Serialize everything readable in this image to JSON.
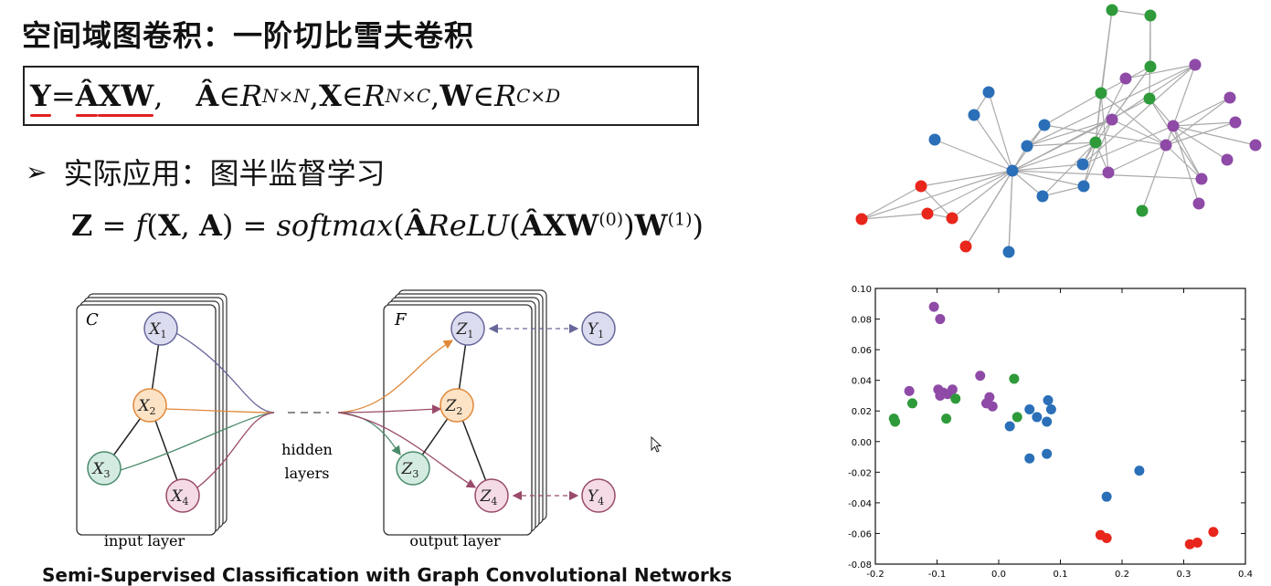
{
  "slide": {
    "title": "空间域图卷积：一阶切比雪夫卷积",
    "formula": {
      "Y": "Y",
      "eq": " = ",
      "A_hat": "Â",
      "XW": "XW",
      "comma1": ",",
      "A_hat2": "Â",
      "in1": " ∈ ",
      "R1": "R",
      "sup1": "N×N",
      "sep1": ",  ",
      "X": "X",
      "in2": " ∈ ",
      "R2": "R",
      "sup2": "N×C",
      "sep2": ",  ",
      "W": "W",
      "in3": " ∈ ",
      "R3": "R",
      "sup3": "C×D"
    },
    "bullet": "实际应用：图半监督学习",
    "equation": {
      "Z": "Z",
      "p1": " = ",
      "f": "f",
      "p2": "(",
      "X": "X",
      "p3": ", ",
      "A": "A",
      "p4": ") = ",
      "softmax": "softmax",
      "p5": "(",
      "Ahat1": "Â",
      "relu": "ReLU",
      "p6": "(",
      "Ahat2": "Â",
      "XW": "XW",
      "sup0": "(0)",
      "p7": ")",
      "W": "W",
      "sup1": "(1)",
      "p8": ")"
    },
    "caption": "Semi-Supervised Classification with Graph Convolutional Networks"
  },
  "gcn_diagram": {
    "input_channel_label": "C",
    "output_channel_label": "F",
    "input_nodes": [
      {
        "letter": "X",
        "sub": "1",
        "color": "#dcdcf0",
        "stroke": "#666699"
      },
      {
        "letter": "X",
        "sub": "2",
        "color": "#fde3c6",
        "stroke": "#e0883a"
      },
      {
        "letter": "X",
        "sub": "3",
        "color": "#d4ebe2",
        "stroke": "#4a8a6a"
      },
      {
        "letter": "X",
        "sub": "4",
        "color": "#f4dbe5",
        "stroke": "#9a4a6a"
      }
    ],
    "output_nodes": [
      {
        "letter": "Z",
        "sub": "1"
      },
      {
        "letter": "Z",
        "sub": "2"
      },
      {
        "letter": "Z",
        "sub": "3"
      },
      {
        "letter": "Z",
        "sub": "4"
      }
    ],
    "label_nodes": [
      {
        "letter": "Y",
        "sub": "1"
      },
      {
        "letter": "Y",
        "sub": "4"
      }
    ],
    "hidden_label_line1": "hidden",
    "hidden_label_line2": "layers",
    "input_layer_label": "input layer",
    "output_layer_label": "output layer"
  },
  "karate_graph": {
    "colors": {
      "red": "#e8261c",
      "blue": "#2a6fb8",
      "green": "#2e9a3a",
      "purple": "#8e4aa6",
      "edge": "#aaaaaa"
    }
  },
  "chart_data": {
    "type": "scatter",
    "xlim": [
      -0.2,
      0.4
    ],
    "ylim": [
      -0.08,
      0.1
    ],
    "x_ticks": [
      "-0.2",
      "-0.1",
      "0.0",
      "0.1",
      "0.2",
      "0.3",
      "0.4"
    ],
    "y_ticks": [
      "0.10",
      "0.08",
      "0.06",
      "0.04",
      "0.02",
      "0.00",
      "-0.02",
      "-0.04",
      "-0.06",
      "-0.08"
    ],
    "grid": false,
    "series": [
      {
        "color": "#8e4aa6",
        "points": [
          [
            -0.105,
            0.088
          ],
          [
            -0.095,
            0.08
          ],
          [
            -0.145,
            0.033
          ],
          [
            -0.098,
            0.034
          ],
          [
            -0.09,
            0.032
          ],
          [
            -0.083,
            0.031
          ],
          [
            -0.075,
            0.034
          ],
          [
            -0.095,
            0.03
          ],
          [
            -0.03,
            0.043
          ],
          [
            -0.015,
            0.029
          ],
          [
            -0.02,
            0.025
          ],
          [
            -0.01,
            0.023
          ]
        ]
      },
      {
        "color": "#2e9a3a",
        "points": [
          [
            -0.17,
            0.015
          ],
          [
            -0.168,
            0.013
          ],
          [
            -0.14,
            0.025
          ],
          [
            -0.085,
            0.015
          ],
          [
            -0.07,
            0.028
          ],
          [
            0.025,
            0.041
          ],
          [
            0.03,
            0.016
          ]
        ]
      },
      {
        "color": "#2a6fb8",
        "points": [
          [
            0.05,
            0.021
          ],
          [
            0.062,
            0.016
          ],
          [
            0.078,
            0.013
          ],
          [
            0.08,
            0.027
          ],
          [
            0.085,
            0.021
          ],
          [
            0.018,
            0.01
          ],
          [
            0.05,
            -0.011
          ],
          [
            0.078,
            -0.008
          ],
          [
            0.175,
            -0.036
          ],
          [
            0.228,
            -0.019
          ]
        ]
      },
      {
        "color": "#e8261c",
        "points": [
          [
            0.165,
            -0.061
          ],
          [
            0.175,
            -0.063
          ],
          [
            0.31,
            -0.067
          ],
          [
            0.322,
            -0.066
          ],
          [
            0.348,
            -0.059
          ]
        ]
      }
    ]
  }
}
